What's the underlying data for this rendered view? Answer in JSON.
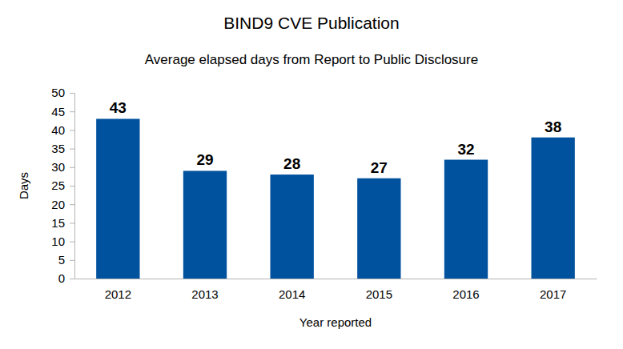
{
  "chart_data": {
    "type": "bar",
    "title": "BIND9 CVE Publication",
    "subtitle": "Average elapsed days from Report to Public Disclosure",
    "x_label": "Year reported",
    "y_label": "Days",
    "categories": [
      "2012",
      "2013",
      "2014",
      "2015",
      "2016",
      "2017"
    ],
    "values": [
      43,
      29,
      28,
      27,
      32,
      38
    ],
    "color": "#00519e",
    "ylim": [
      0,
      50
    ],
    "yticks": [
      0,
      5,
      10,
      15,
      20,
      25,
      30,
      35,
      40,
      45,
      50
    ],
    "grid": false,
    "data_labels": true
  }
}
